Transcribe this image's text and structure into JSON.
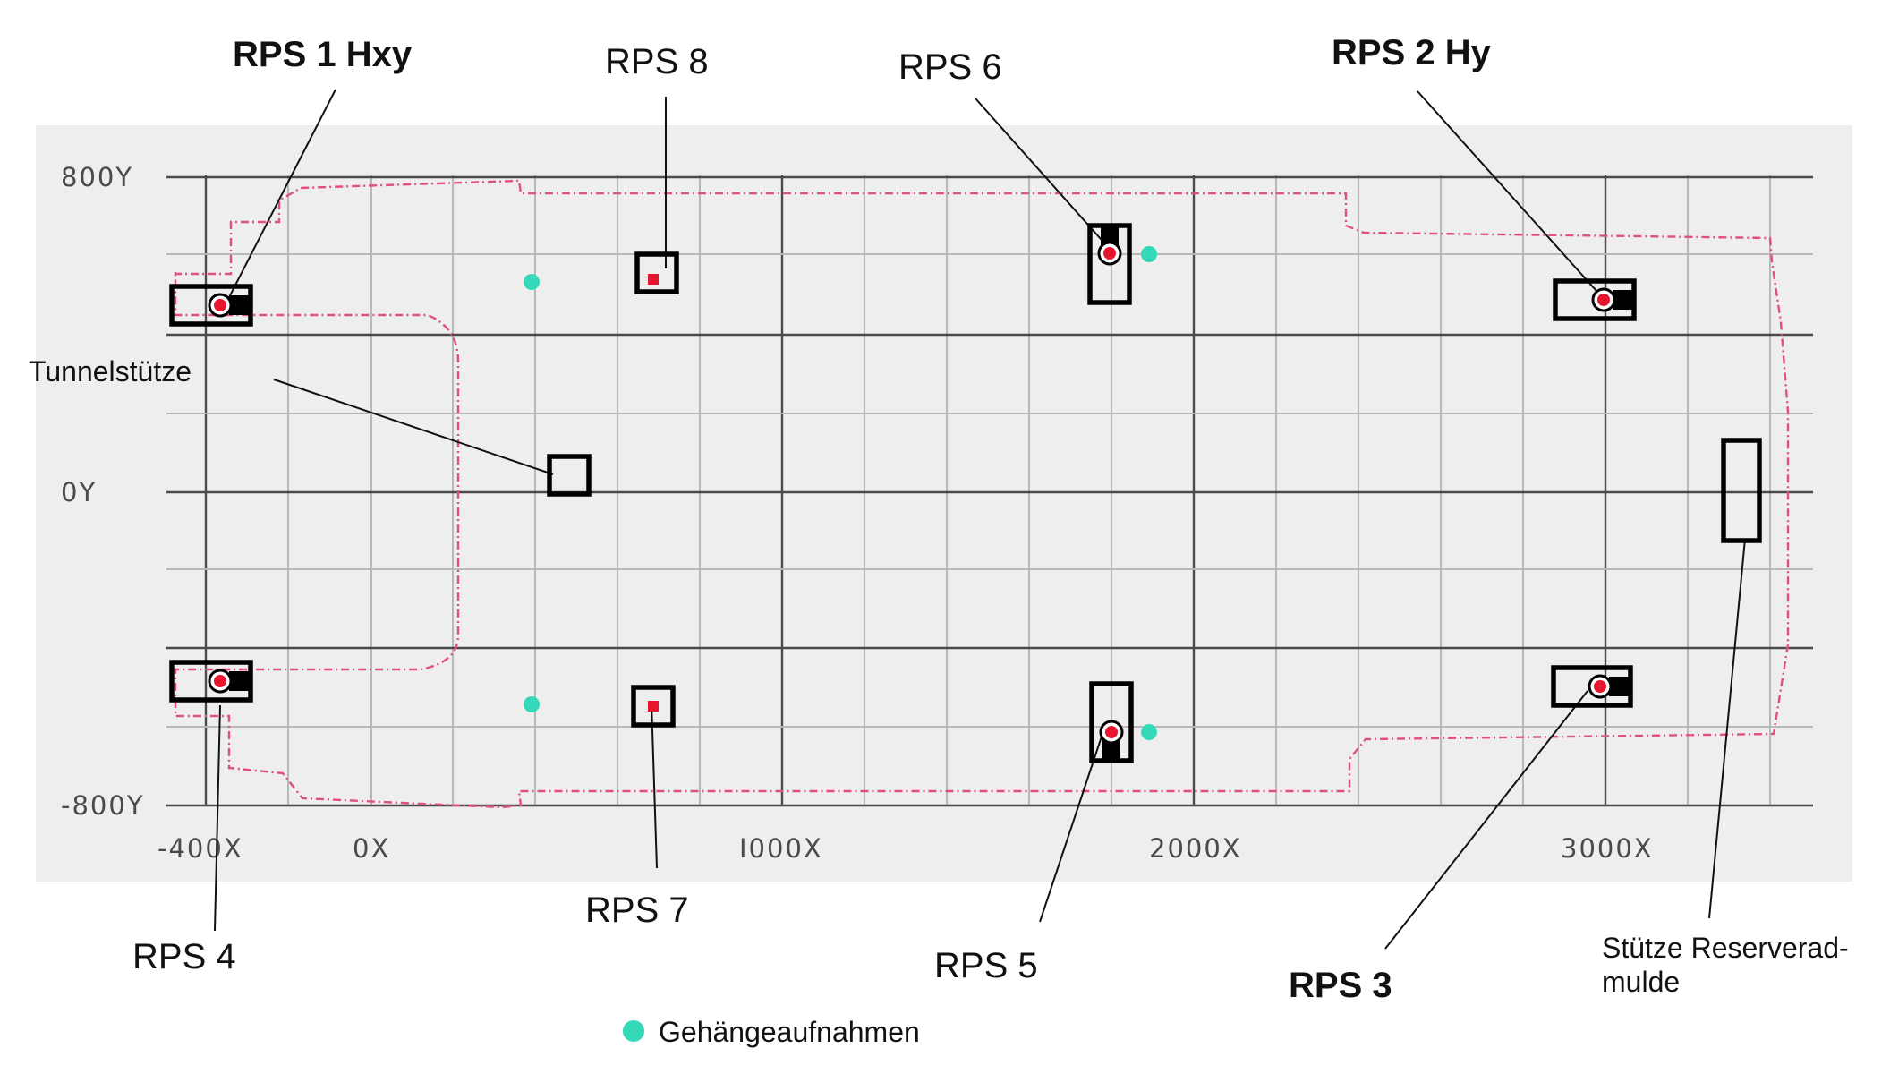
{
  "axes": {
    "x_ticks": [
      {
        "value": -400,
        "label": "-400X"
      },
      {
        "value": 0,
        "label": "0X"
      },
      {
        "value": 1000,
        "label": "I000X"
      },
      {
        "value": 2000,
        "label": "2000X"
      },
      {
        "value": 3000,
        "label": "3000X"
      }
    ],
    "y_ticks": [
      {
        "value": 800,
        "label": "800Y"
      },
      {
        "value": 0,
        "label": "0Y"
      },
      {
        "value": -800,
        "label": "-800Y"
      }
    ]
  },
  "labels": {
    "rps1": "RPS 1 Hxy",
    "rps2": "RPS 2 Hy",
    "rps3": "RPS 3",
    "rps4": "RPS 4",
    "rps5": "RPS 5",
    "rps6": "RPS 6",
    "rps7": "RPS 7",
    "rps8": "RPS 8",
    "tunnel": "Tunnelstütze",
    "reserve_line1": "Stütze Reserverad-",
    "reserve_line2": "mulde"
  },
  "legend": {
    "hanger": "Gehängeaufnahmen"
  },
  "colors": {
    "rps_point": "#e8152e",
    "hanger_point": "#33d9b8",
    "outline": "#e0507a"
  }
}
